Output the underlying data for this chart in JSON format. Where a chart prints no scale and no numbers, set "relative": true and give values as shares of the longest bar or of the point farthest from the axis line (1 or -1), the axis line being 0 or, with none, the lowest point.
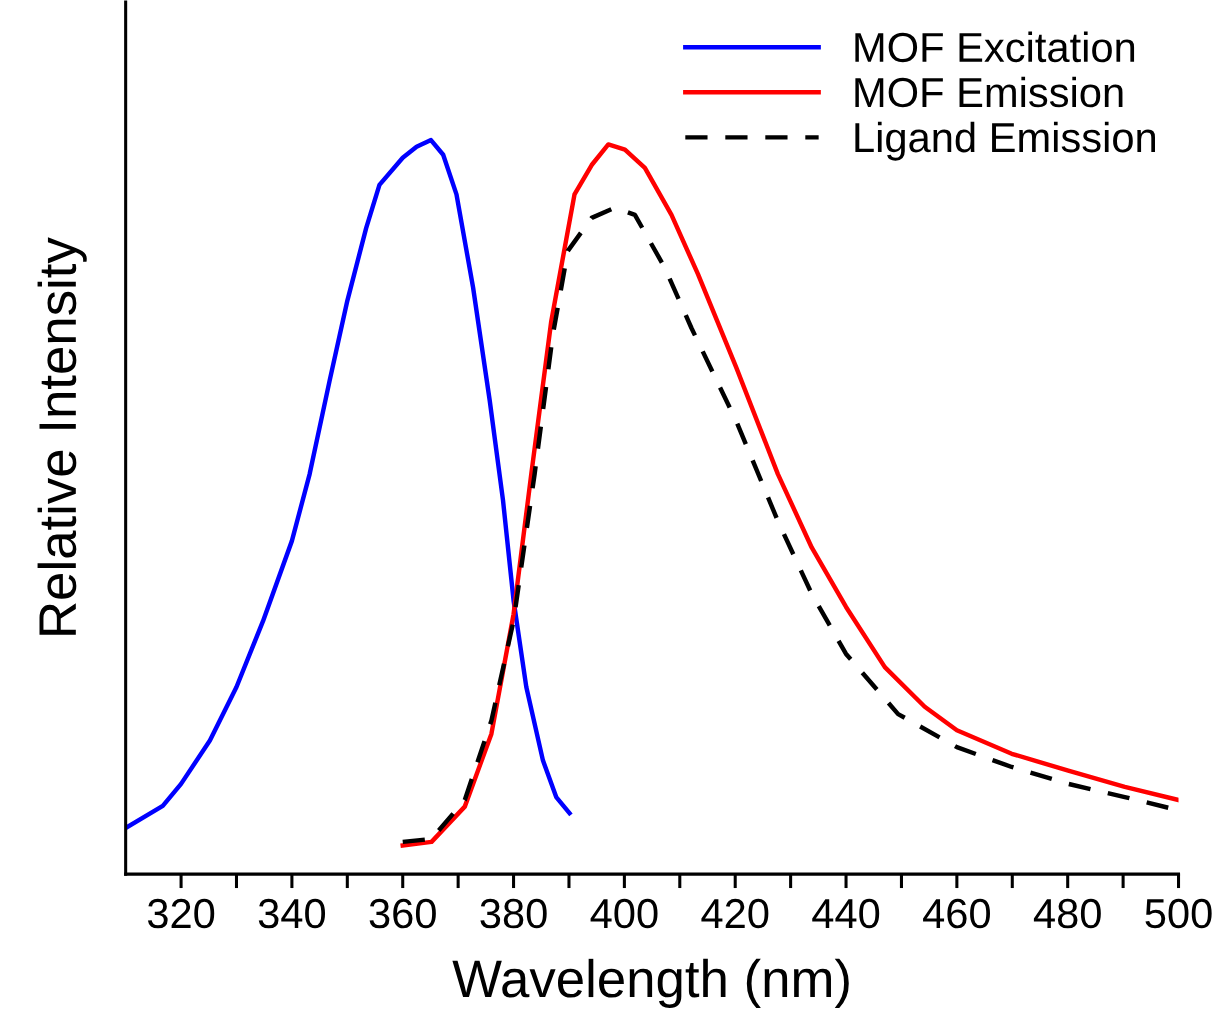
{
  "chart_data": {
    "type": "line",
    "relative": true,
    "xlabel": "Wavelength (nm)",
    "ylabel": "Relative Intensity",
    "xlim": [
      310,
      500
    ],
    "xticks": [
      320,
      {
        "value": 330,
        "label": null
      },
      340,
      {
        "value": 350,
        "label": null
      },
      360,
      {
        "value": 370,
        "label": null
      },
      380,
      {
        "value": 390,
        "label": null
      },
      400,
      {
        "value": 410,
        "label": null
      },
      420,
      {
        "value": 430,
        "label": null
      },
      440,
      {
        "value": 450,
        "label": null
      },
      460,
      {
        "value": 470,
        "label": null
      },
      480,
      {
        "value": 490,
        "label": null
      },
      500
    ],
    "grid": false,
    "legend": "top right",
    "tick_labels": "x",
    "series": [
      {
        "name": "MOF Excitation",
        "color": "#0000ff",
        "line_style": "solid",
        "x": [
          310,
          316.7,
          320,
          325.2,
          330,
          334.8,
          340,
          343.2,
          346.8,
          350,
          353.4,
          355.8,
          360,
          362.5,
          365.1,
          367.3,
          369.7,
          372.7,
          375.7,
          378.1,
          380,
          382.3,
          385.3,
          387.7,
          390.1
        ],
        "values": [
          0.063,
          0.093,
          0.123,
          0.182,
          0.255,
          0.345,
          0.454,
          0.545,
          0.672,
          0.781,
          0.88,
          0.939,
          0.976,
          0.991,
          1.0,
          0.98,
          0.926,
          0.799,
          0.645,
          0.509,
          0.373,
          0.255,
          0.155,
          0.105,
          0.083
        ]
      },
      {
        "name": "MOF Emission",
        "color": "#ff0000",
        "line_style": "solid",
        "x": [
          360,
          365.2,
          371.2,
          376,
          380,
          383.2,
          386.8,
          391,
          394.1,
          397.1,
          400.1,
          403.7,
          408.5,
          413.3,
          420.2,
          427.7,
          433.8,
          440,
          447,
          454.2,
          460,
          469.9,
          480.1,
          490.3,
          500
        ],
        "values": [
          0.039,
          0.044,
          0.092,
          0.191,
          0.354,
          0.545,
          0.753,
          0.926,
          0.966,
          0.994,
          0.987,
          0.962,
          0.898,
          0.817,
          0.69,
          0.545,
          0.445,
          0.364,
          0.282,
          0.228,
          0.196,
          0.164,
          0.141,
          0.119,
          0.101
        ]
      },
      {
        "name": "Ligand Emission",
        "color": "#000000",
        "line_style": "dashed",
        "x": [
          360,
          365.2,
          371.2,
          376,
          380,
          383.8,
          387.1,
          389.8,
          394.1,
          398.3,
          401.9,
          407.3,
          412.1,
          420.2,
          427.7,
          433.8,
          440,
          449.4,
          460,
          469.9,
          480.1,
          490.3,
          500
        ],
        "values": [
          0.044,
          0.048,
          0.101,
          0.209,
          0.345,
          0.545,
          0.735,
          0.849,
          0.894,
          0.908,
          0.898,
          0.826,
          0.744,
          0.617,
          0.481,
          0.382,
          0.3,
          0.218,
          0.173,
          0.146,
          0.123,
          0.105,
          0.087
        ]
      }
    ]
  }
}
